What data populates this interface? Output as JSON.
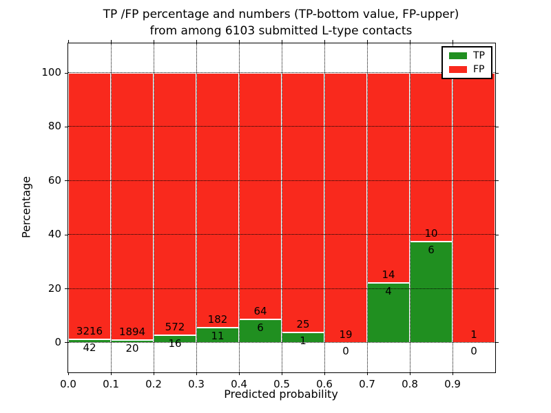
{
  "chart_data": {
    "type": "bar",
    "stacked_to_100_percent": true,
    "title": "TP /FP percentage and numbers (TP-bottom value, FP-upper)\nfrom among 6103 submitted L-type contacts",
    "title_line1": "TP /FP percentage and numbers (TP-bottom value, FP-upper)",
    "title_line2": "from among 6103 submitted L-type contacts",
    "xlabel": "Predicted probability",
    "ylabel": "Percentage",
    "bin_edges": [
      0.0,
      0.1,
      0.2,
      0.3,
      0.4,
      0.5,
      0.6,
      0.7,
      0.8,
      0.9,
      1.0
    ],
    "xtick_labels": [
      "0.0",
      "0.1",
      "0.2",
      "0.3",
      "0.4",
      "0.5",
      "0.6",
      "0.7",
      "0.8",
      "0.9"
    ],
    "yticks": [
      0,
      20,
      40,
      60,
      80,
      100
    ],
    "ylim": [
      -11,
      111
    ],
    "grid": "dotted",
    "legend_position": "upper right",
    "series": [
      {
        "name": "TP",
        "color": "#208f20",
        "counts": [
          42,
          20,
          16,
          11,
          6,
          1,
          0,
          4,
          6,
          0
        ]
      },
      {
        "name": "FP",
        "color": "#f9291d",
        "counts": [
          3216,
          1894,
          572,
          182,
          64,
          25,
          19,
          14,
          10,
          1
        ]
      }
    ],
    "tp_percent": [
      1.29,
      1.04,
      2.72,
      5.7,
      8.57,
      3.85,
      0.0,
      22.22,
      37.5,
      0.0
    ],
    "total_contacts": 6103
  }
}
